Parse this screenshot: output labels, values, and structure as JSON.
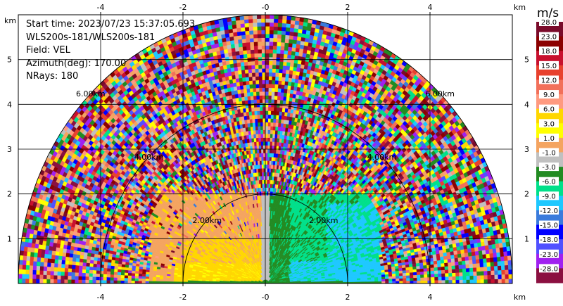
{
  "info": {
    "start_time": "Start time: 2023/07/23 15:37:05.693",
    "instrument": "WLS200s-181/WLS200s-181",
    "field": "Field: VEL",
    "azimuth": "Azimuth(deg): 170.00",
    "nrays": "NRays: 180"
  },
  "axes": {
    "x_ticks": [
      "-4",
      "-2",
      "-0",
      "2",
      "4"
    ],
    "x_tick_values": [
      -4,
      -2,
      0,
      2,
      4
    ],
    "x_unit": "km",
    "y_ticks": [
      "1",
      "2",
      "3",
      "4",
      "5"
    ],
    "y_tick_values": [
      1,
      2,
      3,
      4,
      5
    ],
    "y_unit": "km",
    "xlim": [
      -6,
      6
    ],
    "ylim": [
      0,
      6
    ],
    "grid": true
  },
  "range_rings": [
    {
      "radius_km": 2,
      "label": "2.00km"
    },
    {
      "radius_km": 4,
      "label": "4.00km"
    },
    {
      "radius_km": 6,
      "label": "6.00km"
    }
  ],
  "colorbar": {
    "unit": "m/s",
    "labels": [
      "28.0",
      "23.0",
      "18.0",
      "15.0",
      "12.0",
      "9.0",
      "6.0",
      "3.0",
      "1.0",
      "-1.0",
      "-3.0",
      "-6.0",
      "-9.0",
      "-12.0",
      "-15.0",
      "-18.0",
      "-23.0",
      "-28.0"
    ],
    "colors": [
      "#7a0a2a",
      "#8b0000",
      "#c8102e",
      "#e8412e",
      "#f2705a",
      "#ff9a80",
      "#ffd700",
      "#ffff00",
      "#f4a460",
      "#c0c0c0",
      "#228b22",
      "#00e08a",
      "#1ec8ff",
      "#3a7bdc",
      "#0000ff",
      "#5050ff",
      "#a020f0",
      "#8b1040"
    ]
  },
  "chart_data": {
    "type": "heatmap",
    "field": "VEL",
    "units": "m/s",
    "azimuth_deg": 170.0,
    "nrays": 180,
    "max_range_km": 6
  }
}
